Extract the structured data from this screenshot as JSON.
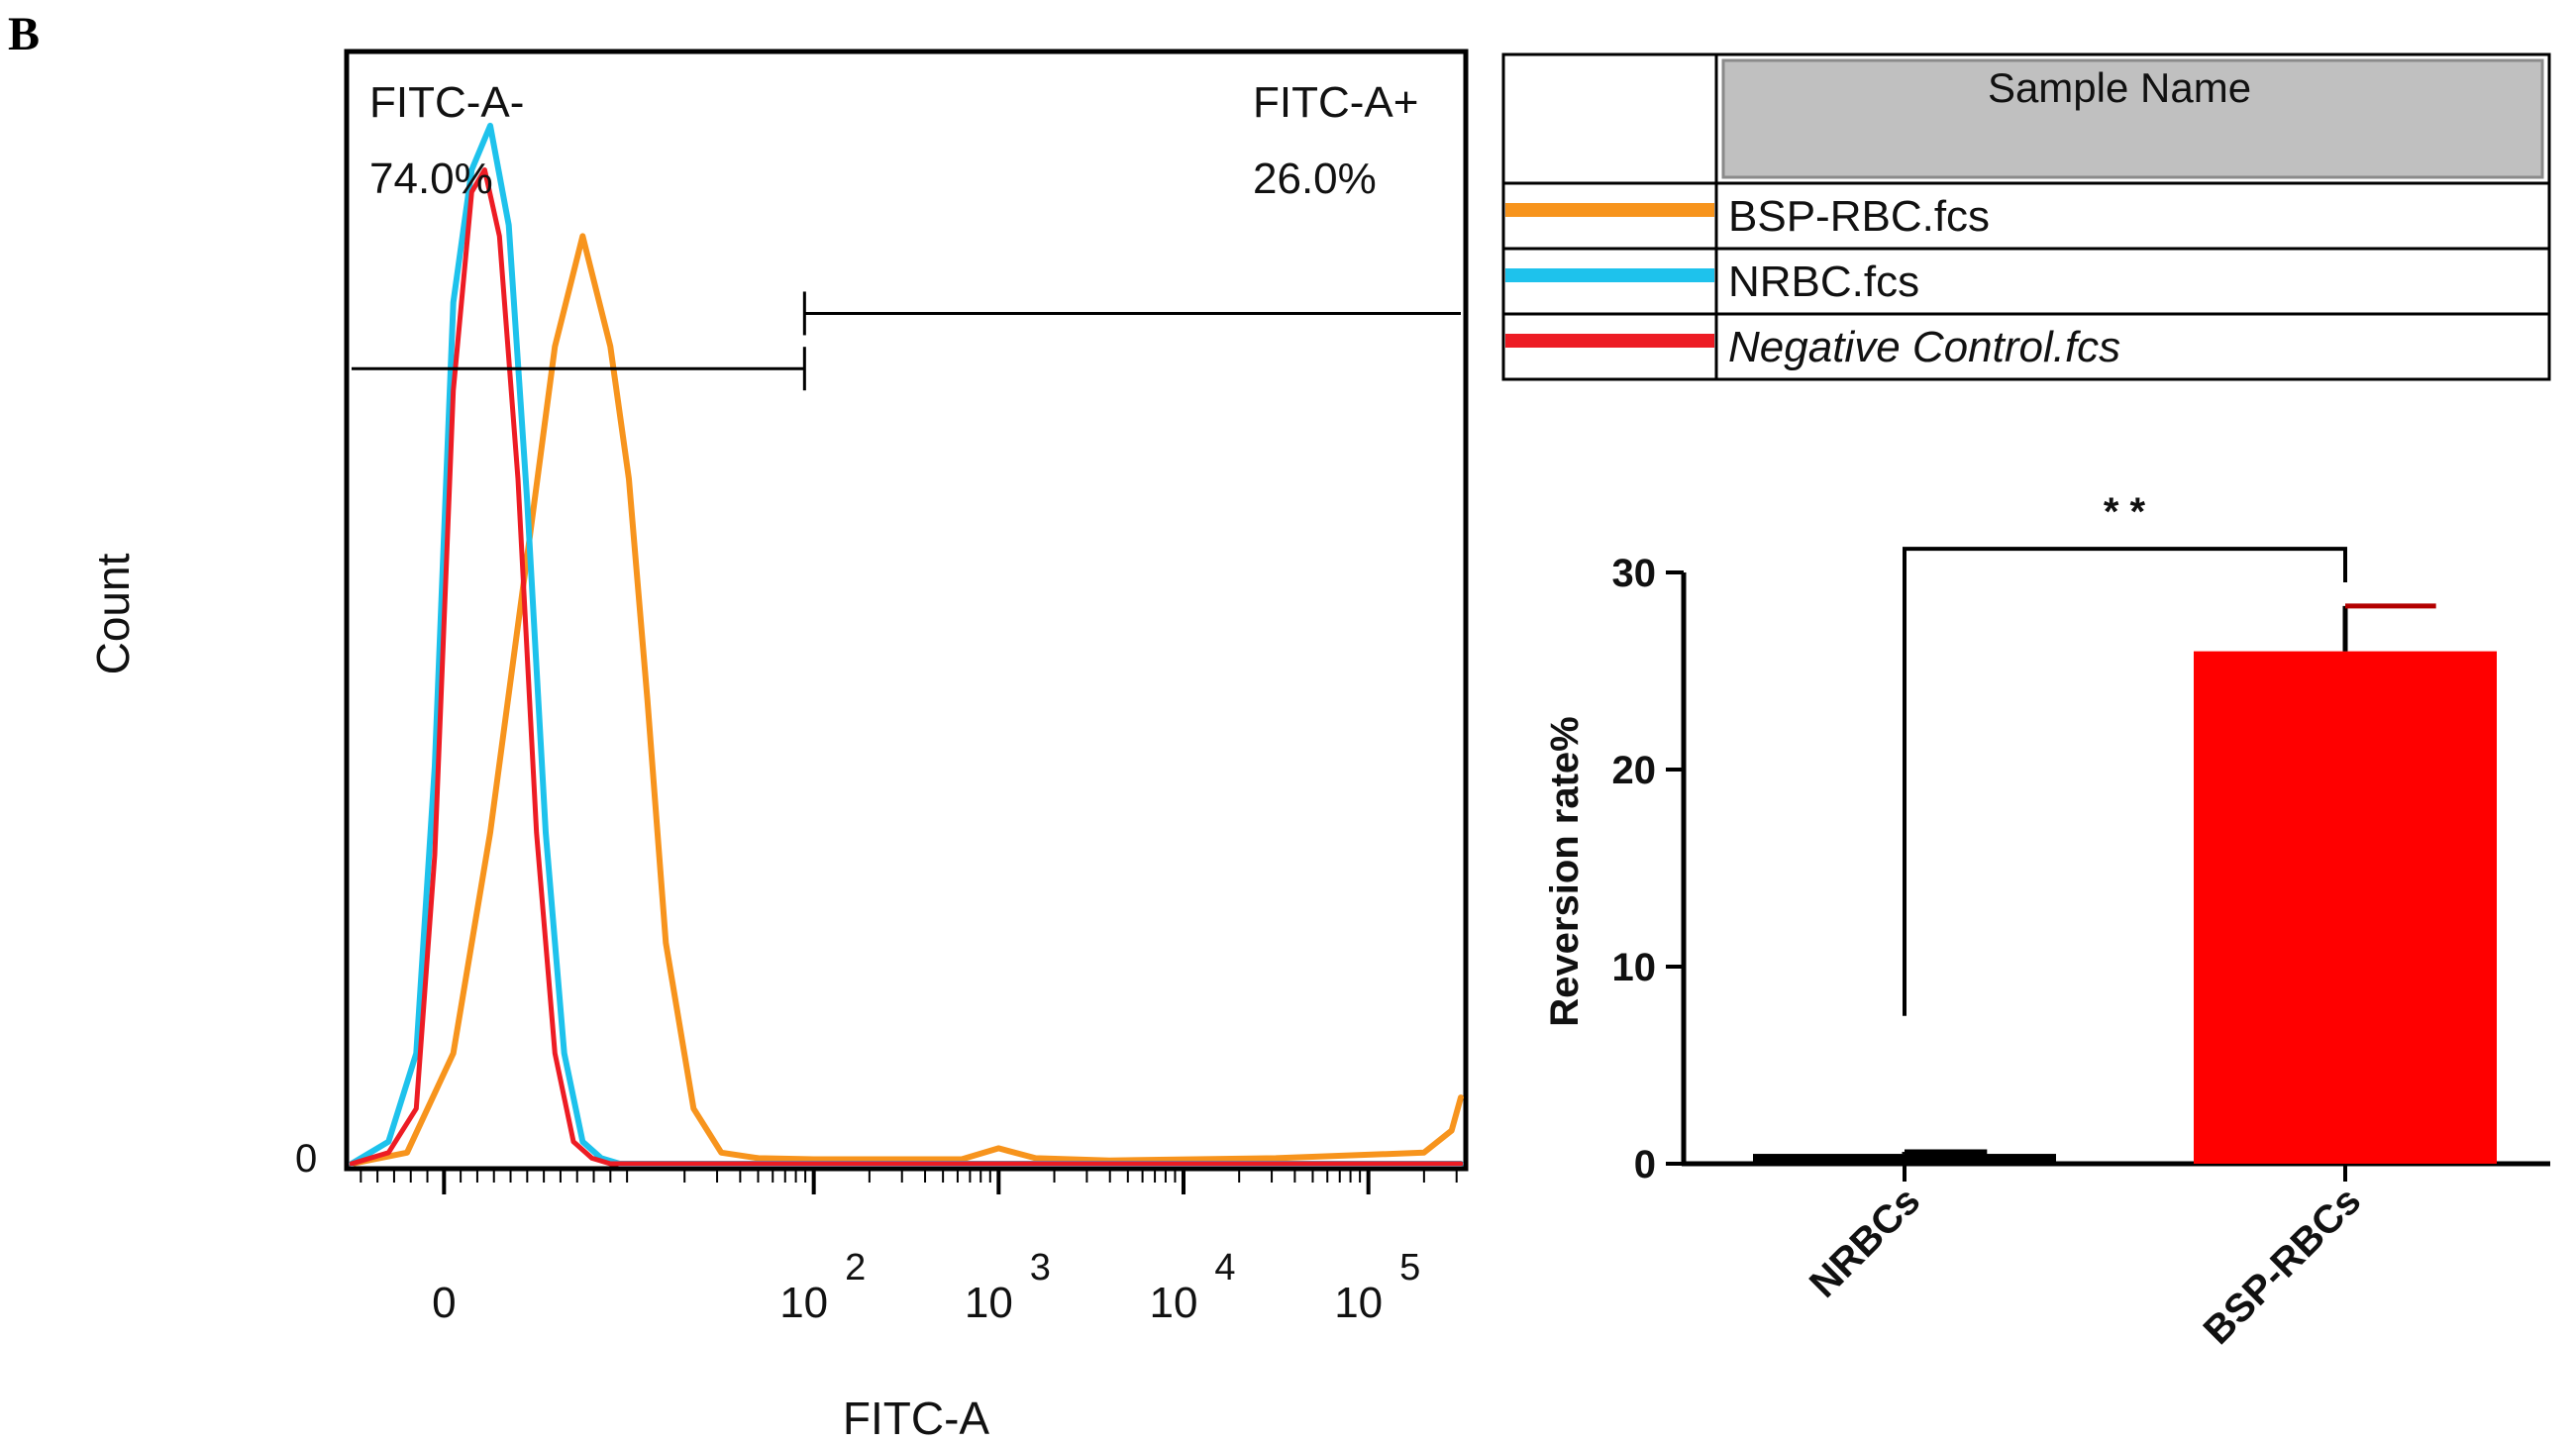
{
  "panel_label": "B",
  "chart_data": [
    {
      "type": "line",
      "subtype": "flow-cytometry-histogram",
      "title": "",
      "xlabel": "FITC-A",
      "ylabel": "Count",
      "x_scale": "log",
      "x_tick_labels": [
        {
          "base": "0",
          "exp": ""
        },
        {
          "base": "10",
          "exp": "2"
        },
        {
          "base": "10",
          "exp": "3"
        },
        {
          "base": "10",
          "exp": "4"
        },
        {
          "base": "10",
          "exp": "5"
        }
      ],
      "x_tick_values": [
        0,
        2,
        3,
        4,
        5
      ],
      "y_tick_labels": [
        "0"
      ],
      "xlim": [
        -0.5,
        5.5
      ],
      "ylim": [
        0,
        1.0
      ],
      "gates": [
        {
          "name": "FITC-A-",
          "percent": "74.0%",
          "range": [
            -0.5,
            1.95
          ],
          "level": 0.72
        },
        {
          "name": "FITC-A+",
          "percent": "26.0%",
          "range": [
            1.95,
            5.5
          ],
          "level": 0.77
        }
      ],
      "legend": {
        "placement": "top-right",
        "header": "Sample Name",
        "entries": [
          {
            "label": "BSP-RBC.fcs",
            "italic": false,
            "color": "#f7941d"
          },
          {
            "label": "NRBC.fcs",
            "italic": false,
            "color": "#1ec2ec"
          },
          {
            "label": "Negative Control.fcs",
            "italic": true,
            "color": "#ed1c24"
          }
        ]
      },
      "series": [
        {
          "name": "Negative Control.fcs",
          "color": "#ed1c24",
          "peak_x": 0.22,
          "peak_y": 0.9,
          "x": [
            -0.5,
            -0.3,
            -0.15,
            -0.05,
            0.05,
            0.15,
            0.22,
            0.3,
            0.4,
            0.5,
            0.6,
            0.7,
            0.8,
            0.9,
            1.0,
            5.5
          ],
          "y": [
            0,
            0.01,
            0.05,
            0.28,
            0.7,
            0.88,
            0.9,
            0.84,
            0.62,
            0.3,
            0.1,
            0.02,
            0.005,
            0,
            0,
            0
          ]
        },
        {
          "name": "NRBC.fcs",
          "color": "#1ec2ec",
          "peak_x": 0.25,
          "peak_y": 0.94,
          "x": [
            -0.5,
            -0.3,
            -0.15,
            -0.05,
            0.05,
            0.15,
            0.25,
            0.35,
            0.45,
            0.55,
            0.65,
            0.75,
            0.85,
            0.95,
            1.05,
            5.5
          ],
          "y": [
            0,
            0.02,
            0.1,
            0.36,
            0.78,
            0.9,
            0.94,
            0.85,
            0.6,
            0.3,
            0.1,
            0.02,
            0.005,
            0,
            0,
            0
          ]
        },
        {
          "name": "BSP-RBC.fcs",
          "color": "#f7941d",
          "peak_x": 0.75,
          "peak_y": 0.84,
          "x": [
            -0.5,
            -0.2,
            0.05,
            0.25,
            0.45,
            0.6,
            0.75,
            0.9,
            1.0,
            1.1,
            1.2,
            1.35,
            1.5,
            1.7,
            2.0,
            2.8,
            3.0,
            3.2,
            3.6,
            4.5,
            5.3,
            5.45,
            5.5
          ],
          "y": [
            0,
            0.01,
            0.1,
            0.3,
            0.55,
            0.74,
            0.84,
            0.74,
            0.62,
            0.42,
            0.2,
            0.05,
            0.01,
            0.005,
            0.004,
            0.004,
            0.014,
            0.005,
            0.003,
            0.005,
            0.01,
            0.03,
            0.06
          ]
        }
      ]
    },
    {
      "type": "bar",
      "title": "",
      "xlabel": "",
      "ylabel": "Reversion rate%",
      "categories": [
        "NRBCs",
        "BSP-RBCs"
      ],
      "values": [
        0.5,
        26.0
      ],
      "errors": [
        0.1,
        2.3
      ],
      "bar_colors": [
        "#000000",
        "#ff0000"
      ],
      "ylim": [
        0,
        30
      ],
      "y_ticks": [
        0,
        10,
        20,
        30
      ],
      "y_tick_labels": [
        "0",
        "10",
        "20",
        "30"
      ],
      "significance": {
        "label": "* *",
        "between": [
          "NRBCs",
          "BSP-RBCs"
        ],
        "left_value": 7.5,
        "top_value": 31.2,
        "right_value": 29.5
      }
    }
  ]
}
